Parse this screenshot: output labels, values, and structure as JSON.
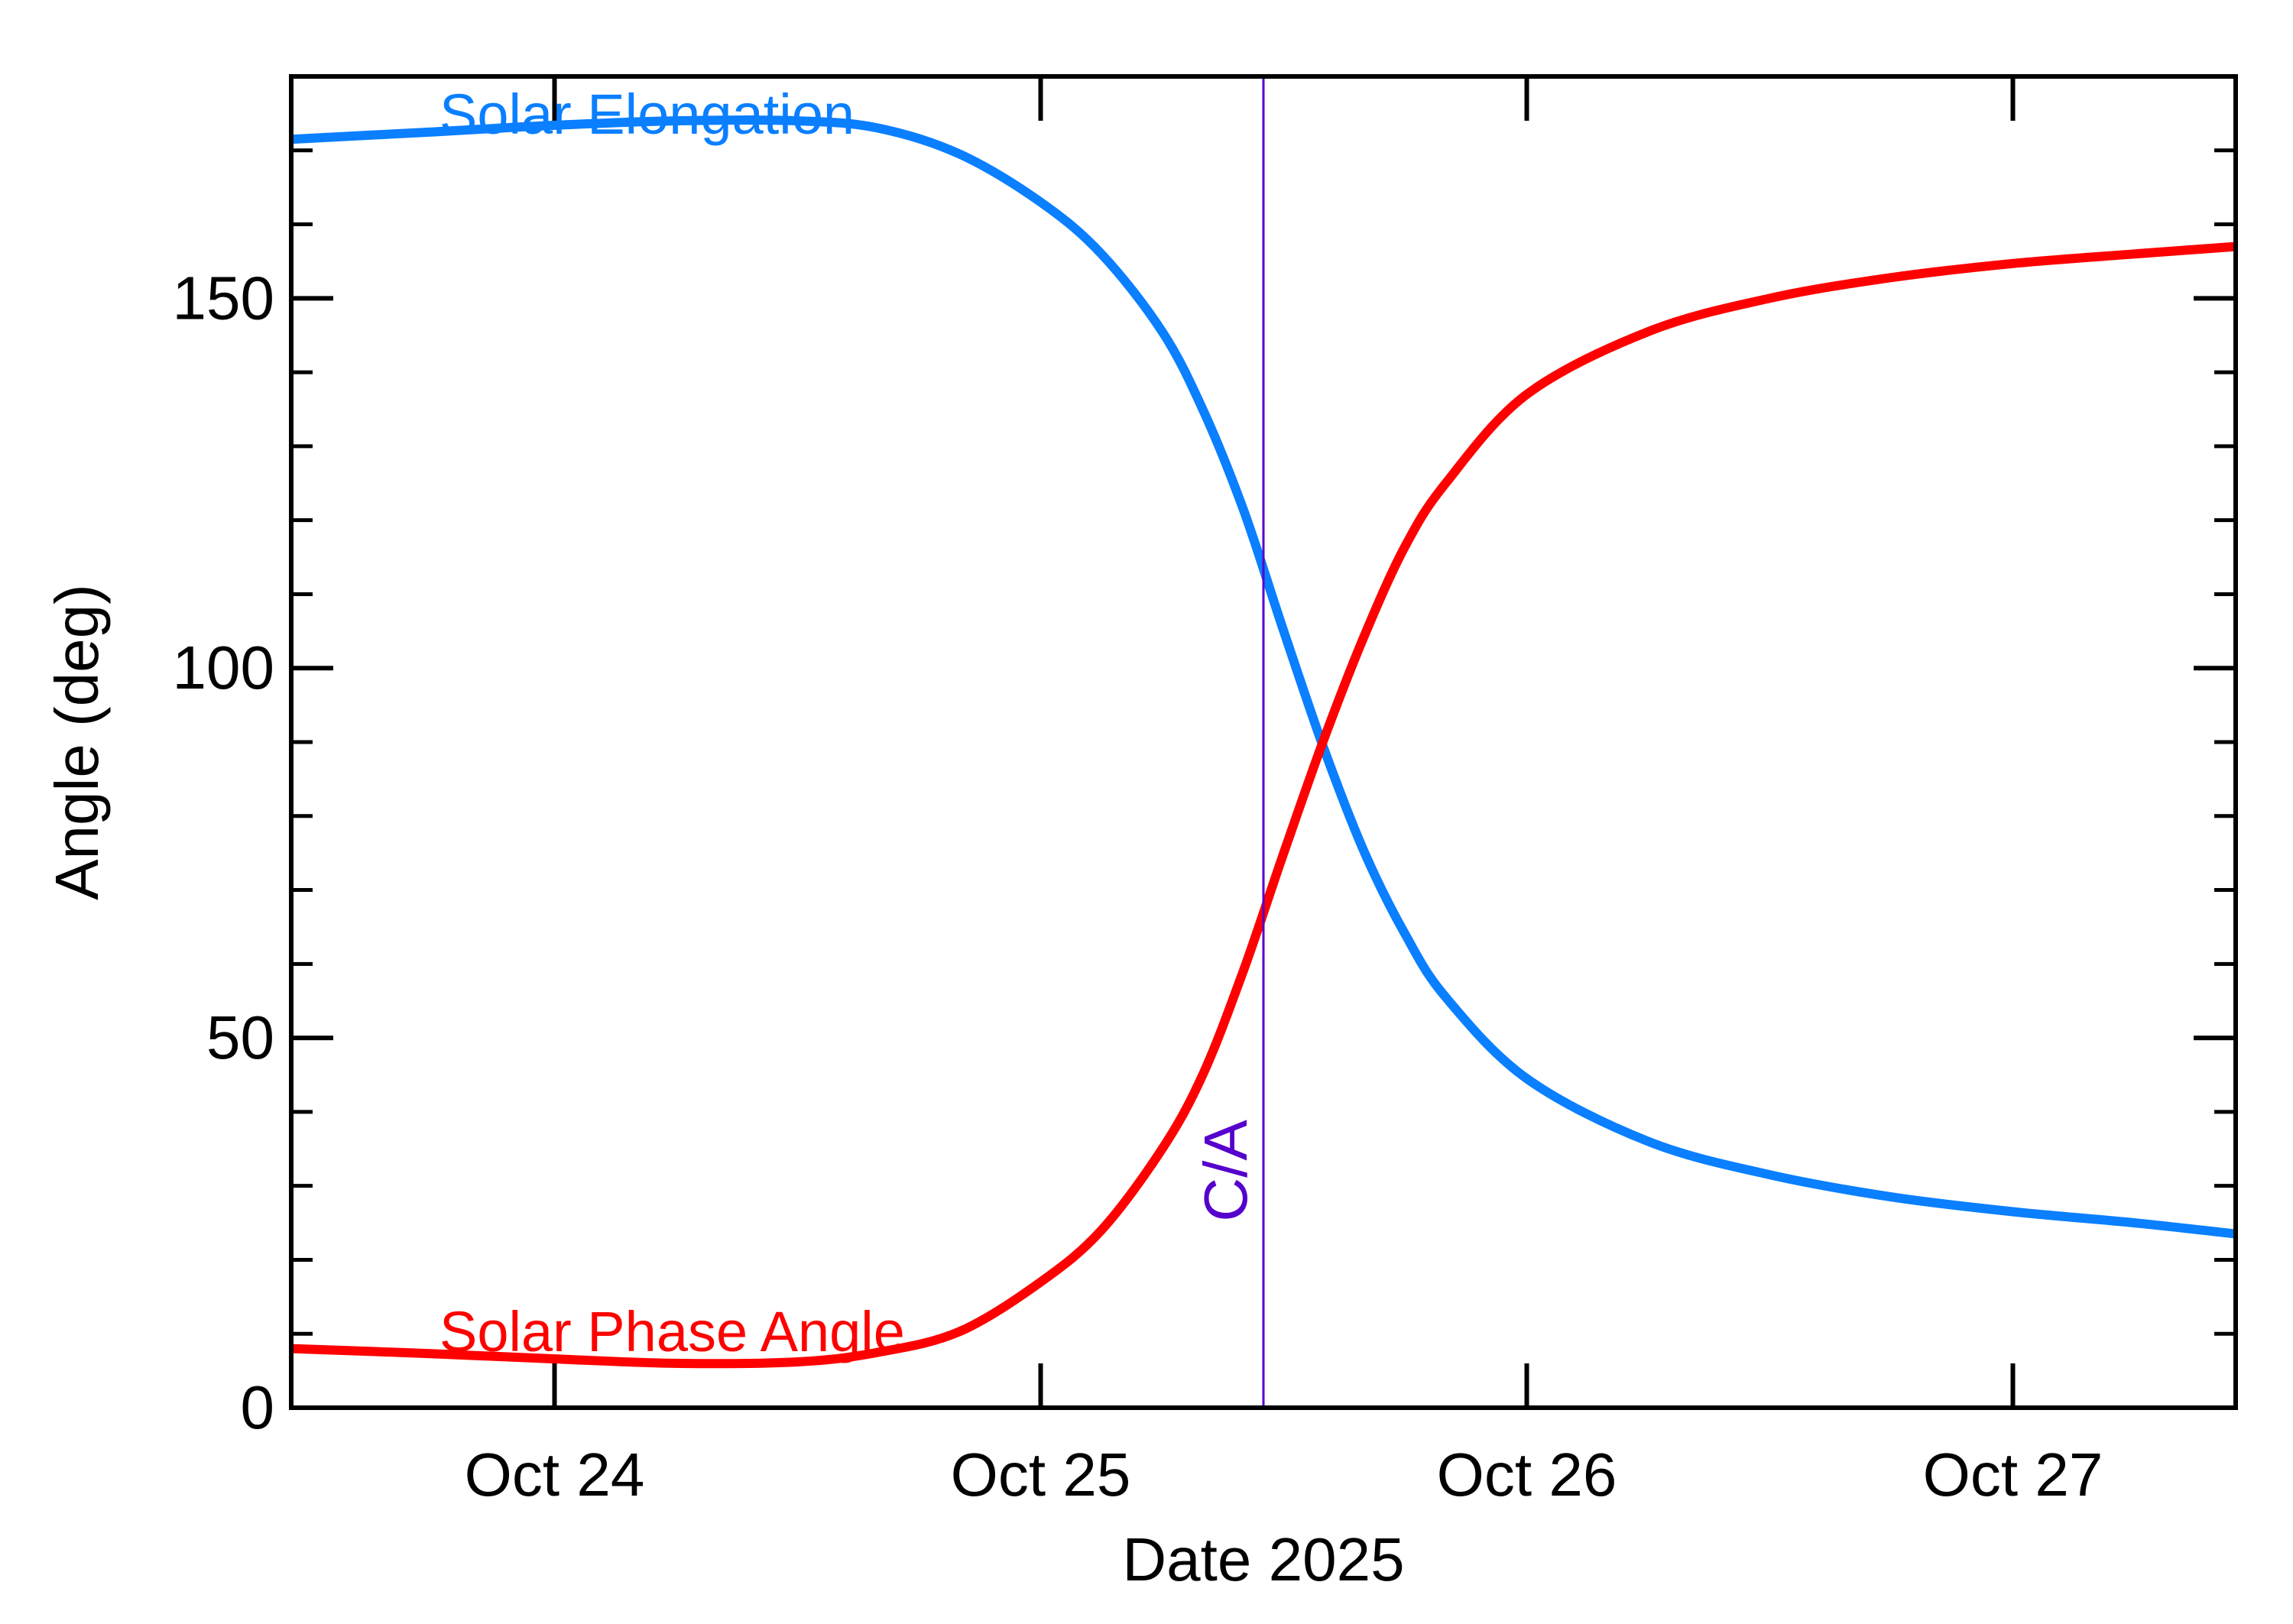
{
  "chart_data": {
    "type": "line",
    "title": "",
    "xlabel": "Date 2025",
    "ylabel": "Angle (deg)",
    "x_ticks": [
      "Oct 24",
      "Oct 25",
      "Oct 26",
      "Oct 27"
    ],
    "x_tick_values": [
      "2025-10-24",
      "2025-10-25",
      "2025-10-26",
      "2025-10-27"
    ],
    "xlim": [
      "2025-10-23 11:00",
      "2025-10-27 11:00"
    ],
    "y_ticks": [
      "0",
      "50",
      "100",
      "150"
    ],
    "y_tick_values": [
      0,
      50,
      100,
      150
    ],
    "ylim": [
      0,
      180
    ],
    "grid": false,
    "closest_approach": {
      "label": "C/A",
      "x": "2025-10-25 11:00",
      "color": "#5500cc"
    },
    "series": [
      {
        "name": "Solar Elongation",
        "color": "#0a7fff",
        "x": [
          "2025-10-23 11:00",
          "2025-10-23 18:00",
          "2025-10-24 00:00",
          "2025-10-24 06:00",
          "2025-10-24 12:00",
          "2025-10-24 16:00",
          "2025-10-24 20:00",
          "2025-10-25 00:00",
          "2025-10-25 03:00",
          "2025-10-25 06:00",
          "2025-10-25 08:00",
          "2025-10-25 10:00",
          "2025-10-25 12:00",
          "2025-10-25 14:00",
          "2025-10-25 16:00",
          "2025-10-25 18:00",
          "2025-10-25 20:00",
          "2025-10-26 00:00",
          "2025-10-26 06:00",
          "2025-10-26 12:00",
          "2025-10-26 18:00",
          "2025-10-27 00:00",
          "2025-10-27 06:00",
          "2025-10-27 11:00"
        ],
        "values": [
          171.5,
          172.5,
          173.4,
          174.0,
          174.0,
          173.0,
          169.5,
          163.0,
          156.0,
          145.5,
          135.0,
          121.5,
          105.0,
          89.0,
          75.0,
          64.0,
          55.5,
          44.5,
          36.0,
          31.5,
          28.5,
          26.5,
          25.0,
          23.5
        ],
        "label_position": "top-left"
      },
      {
        "name": "Solar Phase Angle",
        "color": "#ff0000",
        "x": [
          "2025-10-23 11:00",
          "2025-10-23 18:00",
          "2025-10-24 00:00",
          "2025-10-24 06:00",
          "2025-10-24 12:00",
          "2025-10-24 16:00",
          "2025-10-24 20:00",
          "2025-10-25 00:00",
          "2025-10-25 03:00",
          "2025-10-25 06:00",
          "2025-10-25 08:00",
          "2025-10-25 10:00",
          "2025-10-25 12:00",
          "2025-10-25 14:00",
          "2025-10-25 16:00",
          "2025-10-25 18:00",
          "2025-10-25 20:00",
          "2025-10-26 00:00",
          "2025-10-26 06:00",
          "2025-10-26 12:00",
          "2025-10-26 18:00",
          "2025-10-27 00:00",
          "2025-10-27 06:00",
          "2025-10-27 11:00"
        ],
        "values": [
          8.0,
          7.3,
          6.6,
          6.0,
          6.2,
          7.5,
          10.3,
          17.0,
          24.0,
          35.0,
          45.0,
          59.0,
          75.0,
          90.5,
          104.5,
          116.5,
          125.0,
          137.0,
          145.5,
          150.0,
          152.8,
          154.7,
          156.0,
          157.0
        ],
        "label_position": "bottom-left"
      }
    ]
  }
}
